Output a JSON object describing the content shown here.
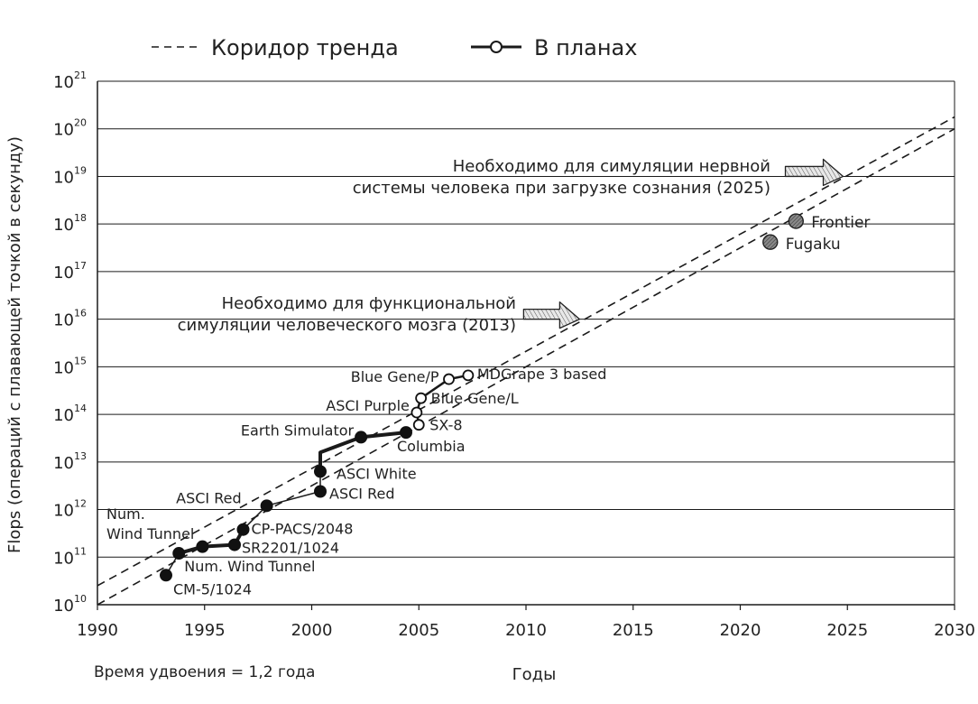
{
  "chart_data": {
    "type": "scatter",
    "x_scale": "linear",
    "y_scale": "log",
    "xlim": [
      1990,
      2030
    ],
    "ylim_exponent": [
      10,
      21
    ],
    "ylabel": "Flops (операций с плавающей точкой в секунду)",
    "xlabel": "Годы",
    "note": "Время удвоения = 1,2 года",
    "x_ticks": [
      "1990",
      "1995",
      "2000",
      "2005",
      "2010",
      "2015",
      "2020",
      "2025",
      "2030"
    ],
    "y_ticks": [
      {
        "base": "10",
        "exp": "10"
      },
      {
        "base": "10",
        "exp": "11"
      },
      {
        "base": "10",
        "exp": "12"
      },
      {
        "base": "10",
        "exp": "13"
      },
      {
        "base": "10",
        "exp": "14"
      },
      {
        "base": "10",
        "exp": "15"
      },
      {
        "base": "10",
        "exp": "16"
      },
      {
        "base": "10",
        "exp": "17"
      },
      {
        "base": "10",
        "exp": "18"
      },
      {
        "base": "10",
        "exp": "19"
      },
      {
        "base": "10",
        "exp": "20"
      },
      {
        "base": "10",
        "exp": "21"
      }
    ],
    "grid": "horizontal",
    "legend": {
      "position": "top",
      "items": [
        {
          "label": "Коридор тренда",
          "style": "dashed"
        },
        {
          "label": "В планах",
          "style": "open-marker"
        }
      ]
    },
    "trend_lines": [
      {
        "x": [
          1990,
          2030
        ],
        "log_y": [
          10.0,
          20.0
        ]
      },
      {
        "x": [
          1990,
          2030
        ],
        "log_y": [
          10.4,
          20.25
        ]
      }
    ],
    "series": [
      {
        "style": "solid-thick",
        "points": [
          {
            "x": 1993.8,
            "log_y": 11.08
          },
          {
            "x": 1994.9,
            "log_y": 11.22
          },
          {
            "x": 1996.4,
            "log_y": 11.26
          },
          {
            "x": 1996.8,
            "log_y": 11.58
          }
        ]
      },
      {
        "style": "solid-thick",
        "points": [
          {
            "x": 2000.4,
            "log_y": 12.8
          },
          {
            "x": 2000.4,
            "log_y": 13.2
          },
          {
            "x": 2002.3,
            "log_y": 13.52
          },
          {
            "x": 2004.4,
            "log_y": 13.62
          }
        ]
      },
      {
        "style": "solid-thin",
        "points": [
          {
            "x": 1993.2,
            "log_y": 10.62
          },
          {
            "x": 1993.8,
            "log_y": 11.08
          }
        ]
      },
      {
        "style": "solid-thin",
        "points": [
          {
            "x": 1996.8,
            "log_y": 11.58
          },
          {
            "x": 1997.9,
            "log_y": 12.08
          },
          {
            "x": 2000.4,
            "log_y": 12.38
          },
          {
            "x": 2000.4,
            "log_y": 12.8
          }
        ]
      },
      {
        "style": "planned",
        "points": [
          {
            "x": 2004.9,
            "log_y": 14.04
          },
          {
            "x": 2005.1,
            "log_y": 14.34
          },
          {
            "x": 2006.4,
            "log_y": 14.74
          },
          {
            "x": 2007.3,
            "log_y": 14.82
          }
        ]
      },
      {
        "style": "planned",
        "points": [
          {
            "x": 2004.9,
            "log_y": 14.04
          },
          {
            "x": 2005.0,
            "log_y": 13.78
          }
        ]
      }
    ],
    "points": [
      {
        "label": "CM-5/1024",
        "x": 1993.2,
        "log_y": 10.62,
        "marker": "filled"
      },
      {
        "label": "Num. Wind Tunnel",
        "x": 1993.8,
        "log_y": 11.08,
        "marker": "filled"
      },
      {
        "label": "",
        "x": 1994.9,
        "log_y": 11.22,
        "marker": "filled"
      },
      {
        "label": "SR2201/1024",
        "x": 1996.4,
        "log_y": 11.26,
        "marker": "filled"
      },
      {
        "label": "CP-PACS/2048",
        "x": 1996.8,
        "log_y": 11.58,
        "marker": "filled"
      },
      {
        "label": "ASCI Red",
        "x": 1997.9,
        "log_y": 12.08,
        "marker": "filled"
      },
      {
        "label": "ASCI Red",
        "x": 2000.4,
        "log_y": 12.38,
        "marker": "filled"
      },
      {
        "label": "ASCI White",
        "x": 2000.4,
        "log_y": 12.8,
        "marker": "filled"
      },
      {
        "label": "Earth Simulator",
        "x": 2002.3,
        "log_y": 13.52,
        "marker": "filled"
      },
      {
        "label": "Columbia",
        "x": 2004.4,
        "log_y": 13.62,
        "marker": "filled"
      },
      {
        "label": "SX-8",
        "x": 2005.0,
        "log_y": 13.78,
        "marker": "open"
      },
      {
        "label": "ASCI Purple",
        "x": 2004.9,
        "log_y": 14.04,
        "marker": "open"
      },
      {
        "label": "Blue Gene/L",
        "x": 2005.1,
        "log_y": 14.34,
        "marker": "open"
      },
      {
        "label": "Blue Gene/P",
        "x": 2006.4,
        "log_y": 14.74,
        "marker": "open"
      },
      {
        "label": "MDGrape 3 based",
        "x": 2007.3,
        "log_y": 14.82,
        "marker": "open"
      },
      {
        "label": "Fugaku",
        "x": 2021.4,
        "log_y": 17.62,
        "marker": "hatched"
      },
      {
        "label": "Frontier",
        "x": 2022.6,
        "log_y": 18.06,
        "marker": "hatched"
      }
    ],
    "annotations": [
      {
        "lines": [
          "Необходимо для функциональной",
          "симуляции человеческого мозга (2013)"
        ],
        "arrow_to_x": 2012.5,
        "arrow_to_log_y": 16.0
      },
      {
        "lines": [
          "Необходимо для симуляции нервной",
          "системы человека при загрузке сознания (2025)"
        ],
        "arrow_to_x": 2024.8,
        "arrow_to_log_y": 19.0
      }
    ],
    "extra_labels": [
      {
        "lines": [
          "Num.",
          "Wind Tunnel"
        ]
      }
    ],
    "colors": {
      "line": "#1a1a1a",
      "grid": "#1a1a1a",
      "hatched_marker": "#777777",
      "arrow": "#cfcfcf"
    }
  }
}
